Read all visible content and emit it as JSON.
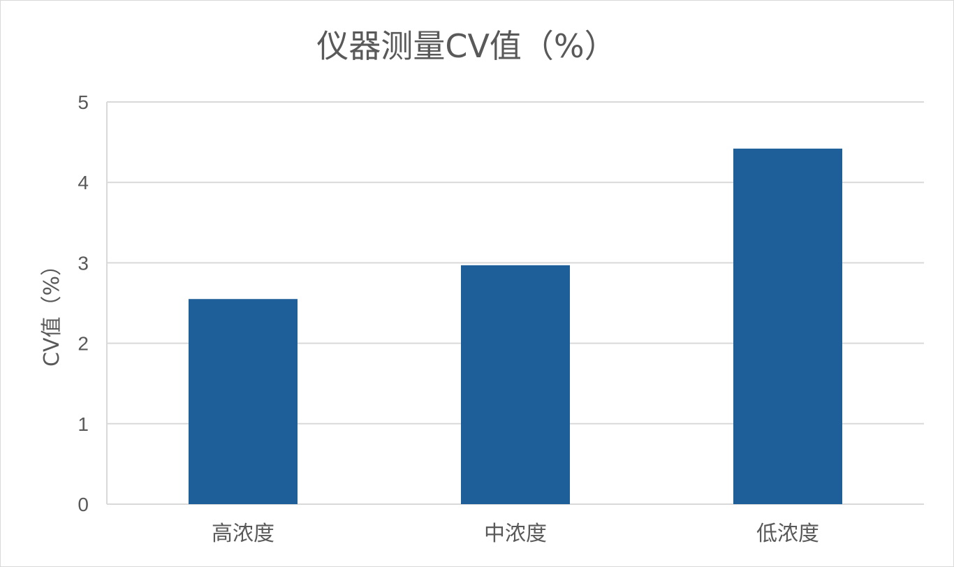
{
  "chart_data": {
    "type": "bar",
    "title": "仪器测量CV值（%）",
    "xlabel": "",
    "ylabel": "CV值（%）",
    "categories": [
      "高浓度",
      "中浓度",
      "低浓度"
    ],
    "series": [
      {
        "values": [
          2.55,
          2.97,
          4.42
        ]
      }
    ],
    "ylim": [
      0,
      5
    ],
    "yticks": [
      0,
      1,
      2,
      3,
      4,
      5
    ],
    "grid": true,
    "legend": "none",
    "bar_color": "#1f5f99",
    "grid_color": "#d9d9d9"
  }
}
